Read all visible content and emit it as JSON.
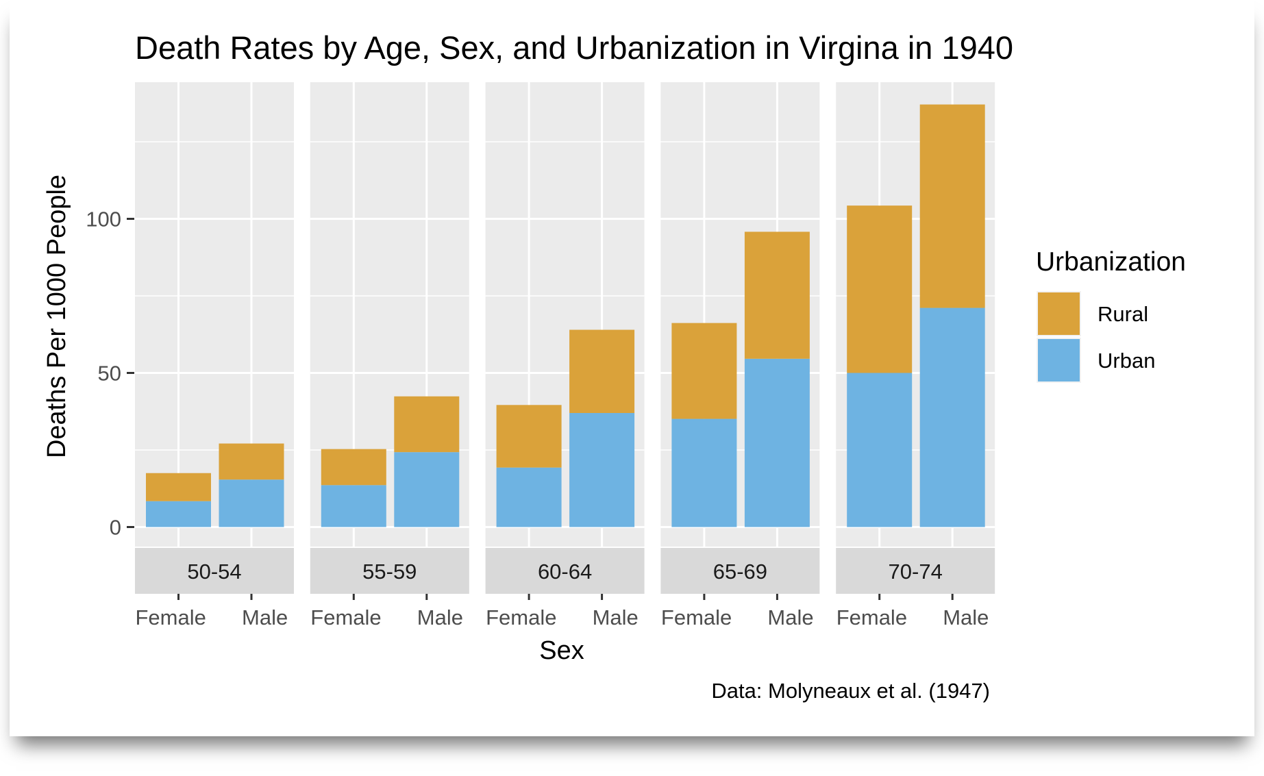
{
  "chart_data": {
    "type": "bar",
    "stacked": true,
    "faceted": true,
    "title": "Death Rates by Age, Sex, and Urbanization in Virgina in 1940",
    "xlabel": "Sex",
    "ylabel": "Deaths Per 1000 People",
    "caption": "Data: Molyneaux et al. (1947)",
    "legend": {
      "title": "Urbanization",
      "position": "right"
    },
    "ylim": [
      0,
      140
    ],
    "yticks": [
      0,
      50,
      100
    ],
    "ytick_labels": [
      "0",
      "50",
      "100"
    ],
    "grid": true,
    "categories": [
      "Female",
      "Male"
    ],
    "panels": [
      {
        "label": "50-54",
        "series": [
          {
            "name": "Urban",
            "values": [
              8.4,
              15.4
            ]
          },
          {
            "name": "Rural",
            "values": [
              9.1,
              11.7
            ]
          }
        ]
      },
      {
        "label": "55-59",
        "series": [
          {
            "name": "Urban",
            "values": [
              13.6,
              24.3
            ]
          },
          {
            "name": "Rural",
            "values": [
              11.7,
              18.1
            ]
          }
        ]
      },
      {
        "label": "60-64",
        "series": [
          {
            "name": "Urban",
            "values": [
              19.3,
              37.0
            ]
          },
          {
            "name": "Rural",
            "values": [
              20.3,
              27.0
            ]
          }
        ]
      },
      {
        "label": "65-69",
        "series": [
          {
            "name": "Urban",
            "values": [
              35.1,
              54.6
            ]
          },
          {
            "name": "Rural",
            "values": [
              31.1,
              41.2
            ]
          }
        ]
      },
      {
        "label": "70-74",
        "series": [
          {
            "name": "Urban",
            "values": [
              50.0,
              71.1
            ]
          },
          {
            "name": "Rural",
            "values": [
              54.3,
              66.0
            ]
          }
        ]
      }
    ],
    "colors": {
      "Rural": "#DAA23A",
      "Urban": "#6EB3E2"
    }
  }
}
